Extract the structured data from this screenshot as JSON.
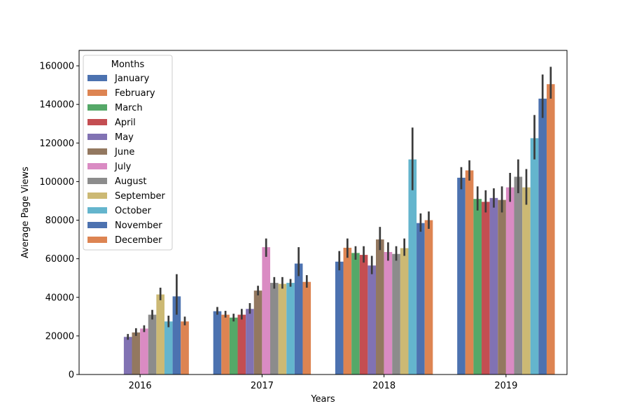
{
  "chart_data": {
    "type": "bar",
    "xlabel": "Years",
    "ylabel": "Average Page Views",
    "ylim": [
      0,
      168000
    ],
    "yticks": [
      0,
      20000,
      40000,
      60000,
      80000,
      100000,
      120000,
      140000,
      160000
    ],
    "categories": [
      "2016",
      "2017",
      "2018",
      "2019"
    ],
    "legend": {
      "title": "Months",
      "position": "upper-left"
    },
    "series": [
      {
        "name": "January",
        "color": "#4c72b0",
        "values": [
          null,
          32800,
          58500,
          102000
        ],
        "err_low": [
          null,
          31000,
          54000,
          96000
        ],
        "err_high": [
          null,
          35000,
          64000,
          107500
        ]
      },
      {
        "name": "February",
        "color": "#dd8452",
        "values": [
          null,
          31000,
          65700,
          105800
        ],
        "err_low": [
          null,
          29500,
          60500,
          100500
        ],
        "err_high": [
          null,
          33000,
          70500,
          111000
        ]
      },
      {
        "name": "March",
        "color": "#55a868",
        "values": [
          null,
          29500,
          63000,
          91000
        ],
        "err_low": [
          null,
          27500,
          59500,
          85000
        ],
        "err_high": [
          null,
          31500,
          66500,
          97500
        ]
      },
      {
        "name": "April",
        "color": "#c44e52",
        "values": [
          null,
          31000,
          62000,
          89500
        ],
        "err_low": [
          null,
          28500,
          58000,
          84000
        ],
        "err_high": [
          null,
          34000,
          66500,
          95500
        ]
      },
      {
        "name": "May",
        "color": "#8172b3",
        "values": [
          19500,
          34000,
          56500,
          91500
        ],
        "err_low": [
          18000,
          31500,
          52000,
          86500
        ],
        "err_high": [
          21000,
          37000,
          61500,
          96500
        ]
      },
      {
        "name": "June",
        "color": "#937860",
        "values": [
          21800,
          43500,
          70000,
          90500
        ],
        "err_low": [
          20000,
          41000,
          64500,
          84000
        ],
        "err_high": [
          24000,
          46000,
          76500,
          97500
        ]
      },
      {
        "name": "July",
        "color": "#da8bc3",
        "values": [
          23800,
          66000,
          63500,
          97000
        ],
        "err_low": [
          22000,
          61000,
          59000,
          89500
        ],
        "err_high": [
          25500,
          70500,
          68500,
          104500
        ]
      },
      {
        "name": "August",
        "color": "#8c8c8c",
        "values": [
          31000,
          47500,
          62500,
          102500
        ],
        "err_low": [
          28500,
          44500,
          59000,
          94000
        ],
        "err_high": [
          33500,
          50500,
          66500,
          111500
        ]
      },
      {
        "name": "September",
        "color": "#ccb974",
        "values": [
          41500,
          47000,
          65500,
          97000
        ],
        "err_low": [
          38500,
          44500,
          61500,
          88000
        ],
        "err_high": [
          45000,
          50500,
          70500,
          106500
        ]
      },
      {
        "name": "October",
        "color": "#64b5cd",
        "values": [
          27500,
          47500,
          111500,
          122500
        ],
        "err_low": [
          24500,
          45500,
          95500,
          111500
        ],
        "err_high": [
          30500,
          49500,
          128000,
          134500
        ]
      },
      {
        "name": "November",
        "color": "#4c72b0",
        "values": [
          40500,
          57500,
          78500,
          143000
        ],
        "err_low": [
          31000,
          51000,
          74000,
          133000
        ],
        "err_high": [
          52000,
          66000,
          83500,
          155500
        ]
      },
      {
        "name": "December",
        "color": "#dd8452",
        "values": [
          27500,
          48000,
          80000,
          150500
        ],
        "err_low": [
          25500,
          45000,
          75500,
          143000
        ],
        "err_high": [
          30000,
          51500,
          84500,
          159500
        ]
      }
    ]
  }
}
